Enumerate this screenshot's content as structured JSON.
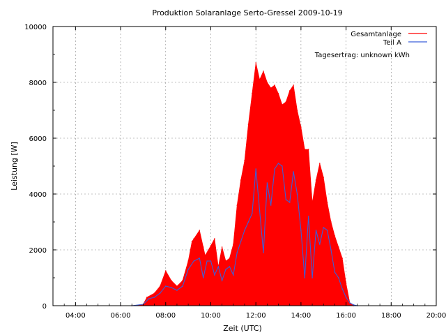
{
  "chart_data": {
    "type": "area",
    "title": "Produktion Solaranlage Serto-Gressel 2009-10-19",
    "xlabel": "Zeit (UTC)",
    "ylabel": "Leistung [W]",
    "xlim": [
      "03:00",
      "20:00"
    ],
    "ylim": [
      0,
      10000
    ],
    "x_ticks": [
      "04:00",
      "06:00",
      "08:00",
      "10:00",
      "12:00",
      "14:00",
      "16:00",
      "18:00",
      "20:00"
    ],
    "y_ticks": [
      "0",
      "2000",
      "4000",
      "6000",
      "8000",
      "10000"
    ],
    "grid": true,
    "legend_position": "top-right",
    "annotation": "Tagesertrag: unknown kWh",
    "colors": {
      "Gesamtanlage": "#ff0000",
      "Teil A": "#3b5fd9"
    },
    "series": [
      {
        "name": "Gesamtanlage",
        "x": [
          "06:00",
          "06:30",
          "07:00",
          "07:10",
          "07:30",
          "07:45",
          "08:00",
          "08:15",
          "08:30",
          "08:45",
          "09:00",
          "09:10",
          "09:15",
          "09:30",
          "09:40",
          "09:45",
          "10:00",
          "10:10",
          "10:20",
          "10:30",
          "10:40",
          "10:50",
          "11:00",
          "11:10",
          "11:20",
          "11:30",
          "11:40",
          "11:50",
          "12:00",
          "12:10",
          "12:20",
          "12:30",
          "12:40",
          "12:50",
          "13:00",
          "13:10",
          "13:20",
          "13:30",
          "13:40",
          "13:50",
          "14:00",
          "14:10",
          "14:20",
          "14:30",
          "14:40",
          "14:50",
          "15:00",
          "15:10",
          "15:20",
          "15:30",
          "15:40",
          "15:50",
          "16:00",
          "16:10",
          "16:20"
        ],
        "values": [
          0,
          0,
          50,
          300,
          450,
          700,
          1250,
          900,
          700,
          900,
          1600,
          2300,
          2400,
          2700,
          2100,
          1800,
          2150,
          2400,
          1400,
          2100,
          1600,
          1700,
          2200,
          3600,
          4500,
          5200,
          6500,
          7600,
          8700,
          8100,
          8400,
          8000,
          7800,
          7900,
          7600,
          7200,
          7300,
          7700,
          7900,
          7000,
          6400,
          5600,
          5600,
          3700,
          4500,
          5100,
          4600,
          3700,
          3000,
          2500,
          2100,
          1700,
          800,
          100,
          0
        ]
      },
      {
        "name": "Teil A",
        "x": [
          "06:00",
          "06:30",
          "07:00",
          "07:15",
          "07:30",
          "07:45",
          "08:00",
          "08:15",
          "08:30",
          "08:45",
          "09:00",
          "09:15",
          "09:30",
          "09:40",
          "09:50",
          "10:00",
          "10:10",
          "10:20",
          "10:30",
          "10:40",
          "10:50",
          "11:00",
          "11:10",
          "11:20",
          "11:30",
          "11:40",
          "11:50",
          "12:00",
          "12:10",
          "12:20",
          "12:30",
          "12:40",
          "12:50",
          "13:00",
          "13:10",
          "13:20",
          "13:30",
          "13:40",
          "13:50",
          "14:00",
          "14:10",
          "14:20",
          "14:30",
          "14:40",
          "14:50",
          "15:00",
          "15:10",
          "15:20",
          "15:30",
          "15:40",
          "15:50",
          "16:00",
          "16:10",
          "16:20",
          "16:30"
        ],
        "values": [
          0,
          0,
          50,
          250,
          300,
          450,
          700,
          650,
          550,
          700,
          1300,
          1600,
          1700,
          1000,
          1600,
          1600,
          1100,
          1400,
          900,
          1300,
          1400,
          1100,
          1900,
          2300,
          2700,
          3000,
          3300,
          4900,
          3400,
          1900,
          4400,
          3600,
          4900,
          5100,
          5000,
          3800,
          3700,
          4800,
          4000,
          2700,
          1000,
          3200,
          1000,
          2700,
          2200,
          2800,
          2700,
          2000,
          1200,
          1000,
          600,
          300,
          100,
          30,
          0
        ]
      }
    ]
  }
}
